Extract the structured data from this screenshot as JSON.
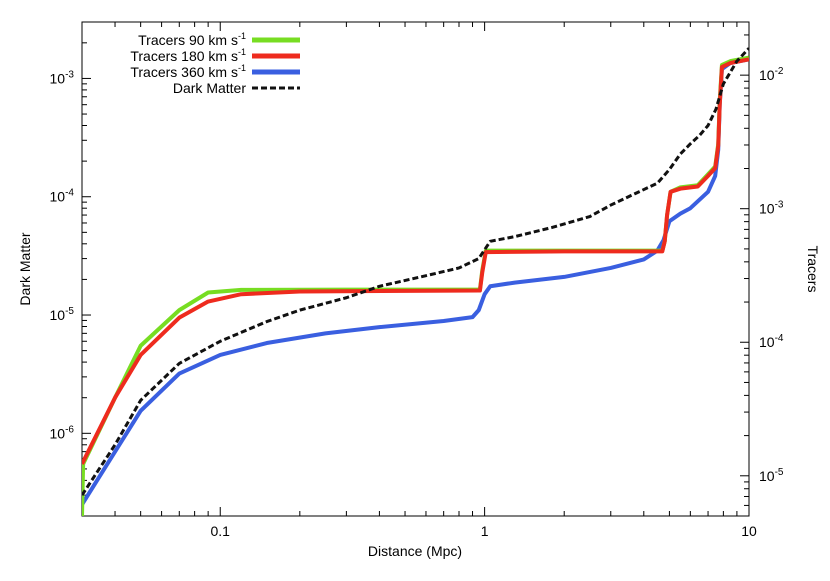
{
  "chart_data": {
    "type": "line",
    "xlabel": "Distance (Mpc)",
    "ylabel_left": "Dark Matter",
    "ylabel_right": "Tracers",
    "x_scale": "log",
    "y_scale": "log",
    "xlim": [
      0.03,
      10
    ],
    "ylim_left": [
      2e-07,
      0.003
    ],
    "ylim_right": [
      5e-06,
      0.025
    ],
    "grid": false,
    "legend_position": "top-left",
    "x_ticks": [
      {
        "value": 0.1,
        "label": "0.1"
      },
      {
        "value": 1,
        "label": "1"
      },
      {
        "value": 10,
        "label": "10"
      }
    ],
    "y_ticks_left": [
      {
        "value": 1e-06,
        "mantissa": "10",
        "exp": "-6"
      },
      {
        "value": 1e-05,
        "mantissa": "10",
        "exp": "-5"
      },
      {
        "value": 0.0001,
        "mantissa": "10",
        "exp": "-4"
      },
      {
        "value": 0.001,
        "mantissa": "10",
        "exp": "-3"
      }
    ],
    "y_ticks_right": [
      {
        "value": 1e-05,
        "mantissa": "10",
        "exp": "-5"
      },
      {
        "value": 0.0001,
        "mantissa": "10",
        "exp": "-4"
      },
      {
        "value": 0.001,
        "mantissa": "10",
        "exp": "-3"
      },
      {
        "value": 0.01,
        "mantissa": "10",
        "exp": "-2"
      }
    ],
    "series": [
      {
        "name": "Tracers 90 km s⁻¹",
        "legend": {
          "main": "Tracers 90 km s",
          "sup": "-1"
        },
        "axis": "left",
        "color": "#77dd22",
        "style": "solid",
        "points": [
          [
            0.03,
            2e-07
          ],
          [
            0.0303,
            5.5e-07
          ],
          [
            0.04,
            2e-06
          ],
          [
            0.05,
            5.5e-06
          ],
          [
            0.07,
            1.1e-05
          ],
          [
            0.09,
            1.55e-05
          ],
          [
            0.12,
            1.63e-05
          ],
          [
            0.3,
            1.64e-05
          ],
          [
            0.96,
            1.64e-05
          ],
          [
            0.98,
            2.4e-05
          ],
          [
            1.01,
            3.5e-05
          ],
          [
            2,
            3.5e-05
          ],
          [
            4.7,
            3.5e-05
          ],
          [
            4.8,
            4.2e-05
          ],
          [
            4.9,
            7e-05
          ],
          [
            5.05,
            0.00011
          ],
          [
            5.5,
            0.00012
          ],
          [
            6.4,
            0.000125
          ],
          [
            7,
            0.000155
          ],
          [
            7.45,
            0.00018
          ],
          [
            7.65,
            0.00028
          ],
          [
            7.75,
            0.00065
          ],
          [
            7.9,
            0.0013
          ],
          [
            8.5,
            0.0014
          ],
          [
            10,
            0.0015
          ]
        ]
      },
      {
        "name": "Tracers 180 km s⁻¹",
        "legend": {
          "main": "Tracers 180 km s",
          "sup": "-1"
        },
        "axis": "left",
        "color": "#ee2b1e",
        "style": "solid",
        "points": [
          [
            0.03,
            5.5e-07
          ],
          [
            0.04,
            2e-06
          ],
          [
            0.05,
            4.6e-06
          ],
          [
            0.07,
            9.5e-06
          ],
          [
            0.09,
            1.3e-05
          ],
          [
            0.12,
            1.5e-05
          ],
          [
            0.2,
            1.58e-05
          ],
          [
            0.5,
            1.6e-05
          ],
          [
            0.96,
            1.61e-05
          ],
          [
            0.98,
            2.3e-05
          ],
          [
            1.01,
            3.4e-05
          ],
          [
            2,
            3.45e-05
          ],
          [
            4.7,
            3.45e-05
          ],
          [
            4.8,
            4.2e-05
          ],
          [
            4.9,
            7e-05
          ],
          [
            5.05,
            0.00011
          ],
          [
            5.5,
            0.000117
          ],
          [
            6.4,
            0.000122
          ],
          [
            7,
            0.00015
          ],
          [
            7.45,
            0.000175
          ],
          [
            7.65,
            0.00027
          ],
          [
            7.75,
            0.0006
          ],
          [
            7.9,
            0.00125
          ],
          [
            8.5,
            0.00135
          ],
          [
            10,
            0.00145
          ]
        ]
      },
      {
        "name": "Tracers 360 km s⁻¹",
        "legend": {
          "main": "Tracers 360 km s",
          "sup": "-1"
        },
        "axis": "left",
        "color": "#3a5fe0",
        "style": "solid",
        "points": [
          [
            0.03,
            2.5e-07
          ],
          [
            0.04,
            7e-07
          ],
          [
            0.05,
            1.55e-06
          ],
          [
            0.07,
            3.2e-06
          ],
          [
            0.1,
            4.6e-06
          ],
          [
            0.15,
            5.8e-06
          ],
          [
            0.25,
            7e-06
          ],
          [
            0.4,
            7.9e-06
          ],
          [
            0.7,
            8.9e-06
          ],
          [
            0.9,
            9.6e-06
          ],
          [
            0.95,
            1.1e-05
          ],
          [
            1.0,
            1.5e-05
          ],
          [
            1.05,
            1.75e-05
          ],
          [
            1.3,
            1.88e-05
          ],
          [
            2,
            2.1e-05
          ],
          [
            3,
            2.5e-05
          ],
          [
            4,
            2.95e-05
          ],
          [
            4.5,
            3.5e-05
          ],
          [
            4.75,
            4.3e-05
          ],
          [
            5,
            6.2e-05
          ],
          [
            5.5,
            7.2e-05
          ],
          [
            6,
            8e-05
          ],
          [
            7,
            0.00011
          ],
          [
            7.45,
            0.00015
          ],
          [
            7.65,
            0.00025
          ],
          [
            7.75,
            0.0006
          ],
          [
            7.9,
            0.0012
          ],
          [
            8.5,
            0.00135
          ],
          [
            10,
            0.00145
          ]
        ]
      },
      {
        "name": "Dark Matter",
        "legend": {
          "main": "Dark Matter",
          "sup": ""
        },
        "axis": "left",
        "color": "#111111",
        "style": "dashed",
        "points": [
          [
            0.03,
            3e-07
          ],
          [
            0.04,
            8e-07
          ],
          [
            0.05,
            1.9e-06
          ],
          [
            0.07,
            3.9e-06
          ],
          [
            0.1,
            6e-06
          ],
          [
            0.15,
            8.8e-06
          ],
          [
            0.2,
            1.1e-05
          ],
          [
            0.3,
            1.4e-05
          ],
          [
            0.4,
            1.75e-05
          ],
          [
            0.6,
            2.15e-05
          ],
          [
            0.8,
            2.5e-05
          ],
          [
            0.95,
            3e-05
          ],
          [
            1.05,
            4.2e-05
          ],
          [
            1.3,
            4.6e-05
          ],
          [
            1.8,
            5.5e-05
          ],
          [
            2.5,
            6.8e-05
          ],
          [
            3,
            8.5e-05
          ],
          [
            3.5,
            0.0001
          ],
          [
            4,
            0.000115
          ],
          [
            4.5,
            0.00013
          ],
          [
            5,
            0.00017
          ],
          [
            5.5,
            0.00023
          ],
          [
            6,
            0.00028
          ],
          [
            6.5,
            0.00033
          ],
          [
            7,
            0.0004
          ],
          [
            7.5,
            0.00055
          ],
          [
            8,
            0.0009
          ],
          [
            9,
            0.0014
          ],
          [
            10,
            0.0018
          ]
        ]
      }
    ]
  }
}
